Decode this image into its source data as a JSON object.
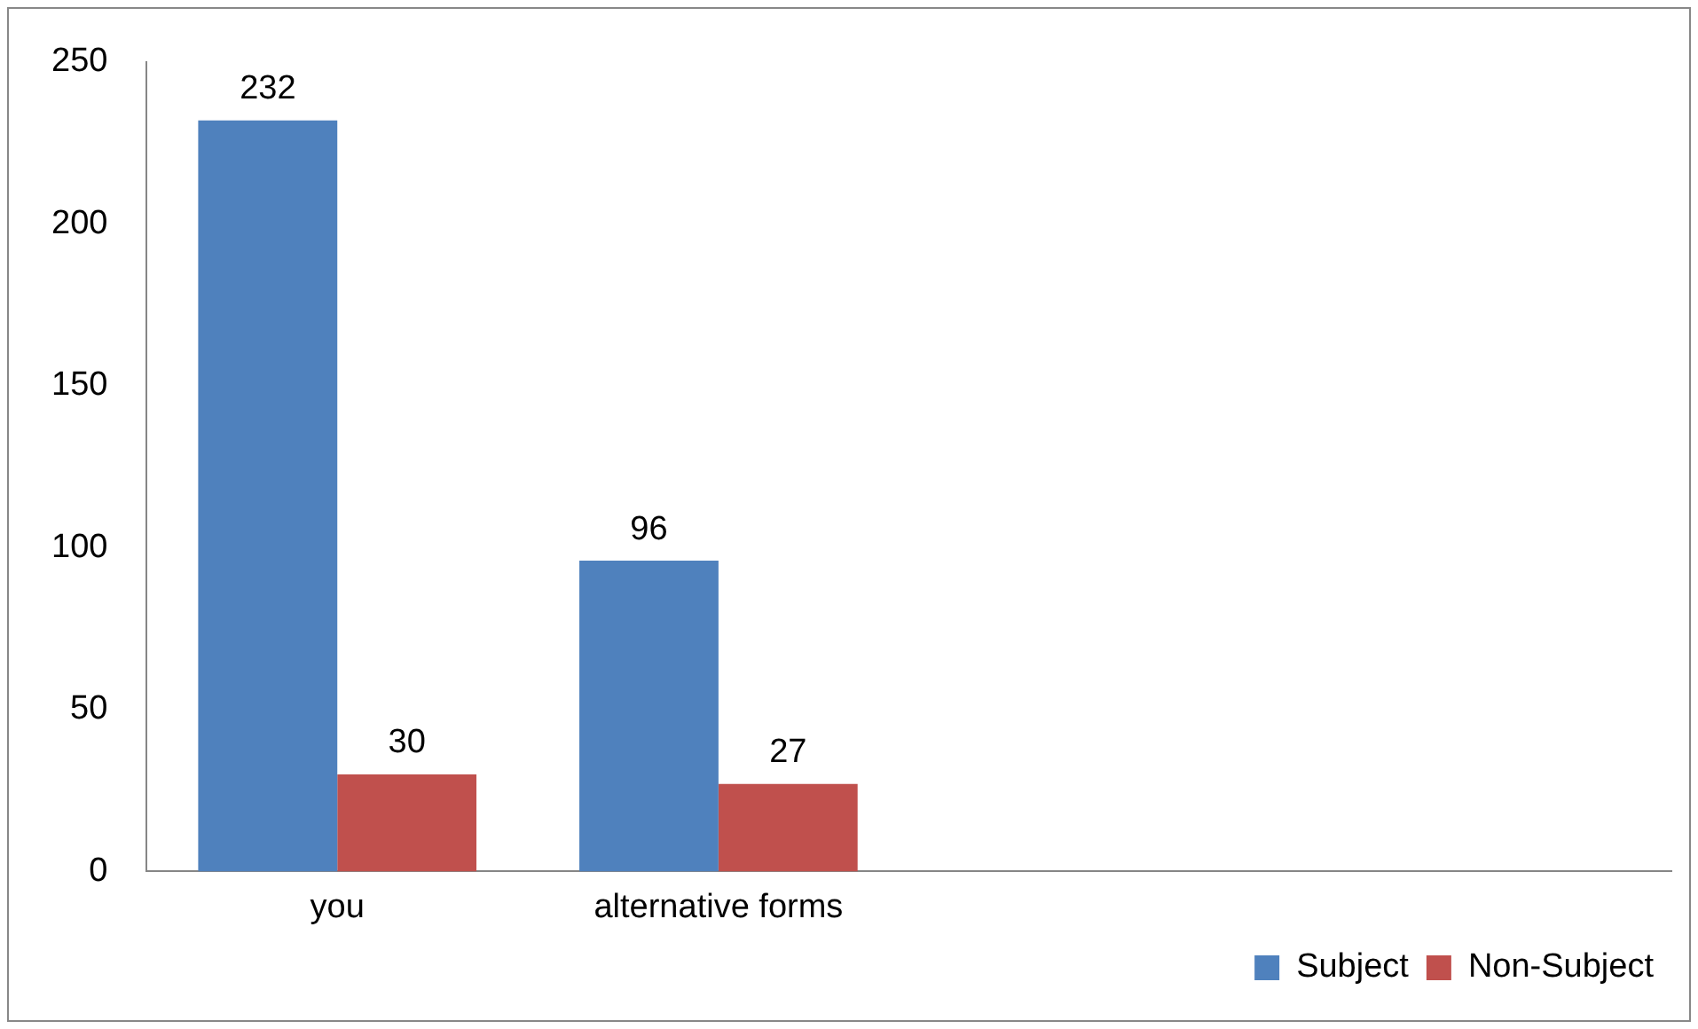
{
  "chart_data": {
    "type": "bar",
    "categories": [
      "you",
      "alternative forms",
      null,
      null
    ],
    "series": [
      {
        "name": "Subject",
        "color": "#4f81bd",
        "values": [
          232,
          96,
          null,
          null
        ]
      },
      {
        "name": "Non-Subject",
        "color": "#c0504d",
        "values": [
          30,
          27,
          null,
          null
        ]
      }
    ],
    "ylim": [
      0,
      250
    ],
    "yticks": [
      0,
      50,
      100,
      150,
      200,
      250
    ],
    "grid": false,
    "legend": "bottom right",
    "data_labels": true
  }
}
